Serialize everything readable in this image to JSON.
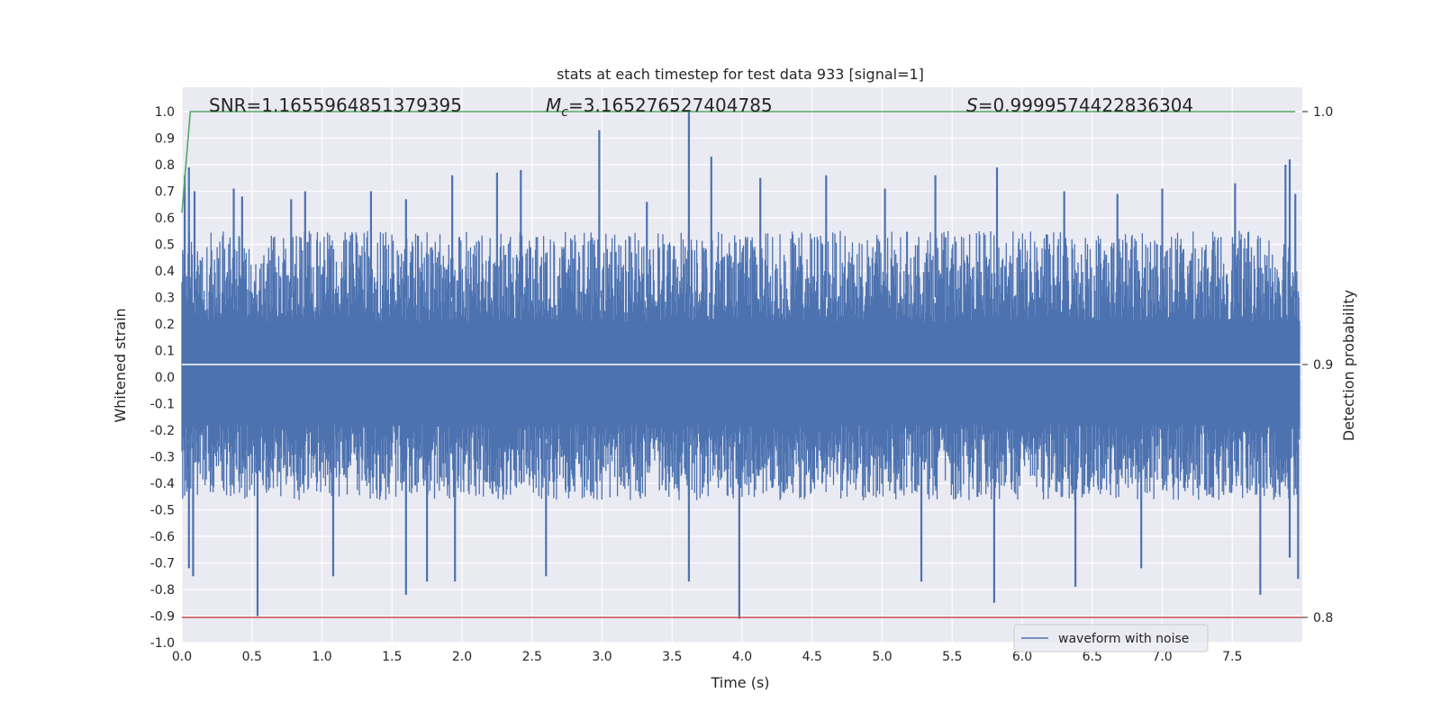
{
  "chart_data": {
    "type": "line",
    "title": "stats at each timestep for test data 933 [signal=1]",
    "xlabel": "Time (s)",
    "ylabel": "Whitened strain",
    "ylabel_right": "Detection probability",
    "xlim": [
      0.0,
      8.0
    ],
    "ylim": [
      -1.0,
      1.08
    ],
    "ylim_right": [
      0.8,
      1.0
    ],
    "grid": true,
    "legend_position": "lower-right",
    "x_ticks": [
      "0.0",
      "0.5",
      "1.0",
      "1.5",
      "2.0",
      "2.5",
      "3.0",
      "3.5",
      "4.0",
      "4.5",
      "5.0",
      "5.5",
      "6.0",
      "6.5",
      "7.0",
      "7.5"
    ],
    "y_ticks": [
      "1.0",
      "0.9",
      "0.8",
      "0.7",
      "0.6",
      "0.5",
      "0.4",
      "0.3",
      "0.2",
      "0.1",
      "0.0",
      "-0.1",
      "-0.2",
      "-0.3",
      "-0.4",
      "-0.5",
      "-0.6",
      "-0.7",
      "-0.8",
      "-0.9",
      "-1.0"
    ],
    "y_ticks_right": [
      "1.0",
      "0.9",
      "0.8"
    ],
    "annotations": {
      "snr": "SNR=1.1655964851379395",
      "mc_symbol": "M",
      "mc_subscript": "c",
      "mc_value": "=3.165276527404785",
      "s_symbol": "S",
      "s_value": "=0.9999574422836304"
    },
    "series": [
      {
        "name": "waveform with noise",
        "color": "#4c72b0",
        "band_upper": 0.38,
        "band_lower": -0.32,
        "peaks": [
          {
            "x": 0.02,
            "y": 0.76
          },
          {
            "x": 0.05,
            "y": 0.79
          },
          {
            "x": 0.09,
            "y": 0.7
          },
          {
            "x": 0.37,
            "y": 0.71
          },
          {
            "x": 0.43,
            "y": 0.68
          },
          {
            "x": 0.78,
            "y": 0.67
          },
          {
            "x": 0.88,
            "y": 0.7
          },
          {
            "x": 1.35,
            "y": 0.7
          },
          {
            "x": 1.6,
            "y": 0.67
          },
          {
            "x": 1.93,
            "y": 0.76
          },
          {
            "x": 2.25,
            "y": 0.77
          },
          {
            "x": 2.42,
            "y": 0.78
          },
          {
            "x": 2.98,
            "y": 0.93
          },
          {
            "x": 3.32,
            "y": 0.66
          },
          {
            "x": 3.62,
            "y": 1.0
          },
          {
            "x": 3.78,
            "y": 0.83
          },
          {
            "x": 4.13,
            "y": 0.75
          },
          {
            "x": 4.6,
            "y": 0.76
          },
          {
            "x": 5.02,
            "y": 0.71
          },
          {
            "x": 5.38,
            "y": 0.76
          },
          {
            "x": 5.82,
            "y": 0.79
          },
          {
            "x": 6.3,
            "y": 0.7
          },
          {
            "x": 6.68,
            "y": 0.69
          },
          {
            "x": 7.0,
            "y": 0.71
          },
          {
            "x": 7.52,
            "y": 0.73
          },
          {
            "x": 7.88,
            "y": 0.8
          },
          {
            "x": 7.91,
            "y": 0.82
          },
          {
            "x": 7.95,
            "y": 0.69
          }
        ],
        "troughs": [
          {
            "x": 0.05,
            "y": -0.72
          },
          {
            "x": 0.08,
            "y": -0.75
          },
          {
            "x": 0.54,
            "y": -0.9
          },
          {
            "x": 1.08,
            "y": -0.75
          },
          {
            "x": 1.6,
            "y": -0.82
          },
          {
            "x": 1.75,
            "y": -0.77
          },
          {
            "x": 1.95,
            "y": -0.77
          },
          {
            "x": 2.6,
            "y": -0.75
          },
          {
            "x": 3.62,
            "y": -0.77
          },
          {
            "x": 3.98,
            "y": -0.91
          },
          {
            "x": 5.28,
            "y": -0.77
          },
          {
            "x": 5.8,
            "y": -0.85
          },
          {
            "x": 6.38,
            "y": -0.79
          },
          {
            "x": 6.85,
            "y": -0.72
          },
          {
            "x": 7.7,
            "y": -0.82
          },
          {
            "x": 7.91,
            "y": -0.68
          },
          {
            "x": 7.97,
            "y": -0.76
          }
        ]
      },
      {
        "name": "",
        "color": "#55a868",
        "axis": "right",
        "x": [
          0.0,
          0.06,
          7.95
        ],
        "y": [
          0.96,
          1.0,
          1.0
        ]
      }
    ],
    "reference_lines": [
      {
        "axis": "right",
        "y": 0.9,
        "color": "#ffffff"
      },
      {
        "axis": "right",
        "y": 0.8,
        "color": "#c44e52"
      }
    ]
  }
}
